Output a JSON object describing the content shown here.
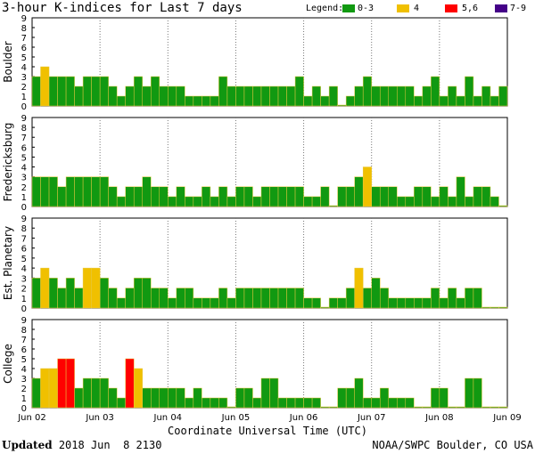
{
  "title": "3-hour K-indices for Last 7 days",
  "legend": {
    "label": "Legend:",
    "items": [
      {
        "text": "0-3",
        "color": "#119911"
      },
      {
        "text": "4",
        "color": "#f0c000"
      },
      {
        "text": "5,6",
        "color": "#ff0000"
      },
      {
        "text": "7-9",
        "color": "#440088"
      }
    ]
  },
  "x_axis_title": "Coordinate Universal Time (UTC)",
  "updated_label": "Updated",
  "updated_time": "2018 Jun  8 2130",
  "credit": "NOAA/SWPC Boulder, CO USA",
  "chart_data": [
    {
      "type": "bar",
      "ylabel": "Boulder",
      "ylim": [
        0,
        9
      ],
      "yticks": [
        "0",
        "1",
        "2",
        "3",
        "4",
        "5",
        "6",
        "7",
        "8",
        "9"
      ],
      "xticks": [
        "Jun 02",
        "Jun 03",
        "Jun 04",
        "Jun 05",
        "Jun 06",
        "Jun 07",
        "Jun 08",
        "Jun 09"
      ],
      "values": [
        3,
        4,
        3,
        3,
        3,
        2,
        3,
        3,
        3,
        2,
        1,
        2,
        3,
        2,
        3,
        2,
        2,
        2,
        1,
        1,
        1,
        1,
        3,
        2,
        2,
        2,
        2,
        2,
        2,
        2,
        2,
        3,
        1,
        2,
        1,
        2,
        0,
        1,
        2,
        3,
        2,
        2,
        2,
        2,
        2,
        1,
        2,
        3,
        1,
        2,
        1,
        3,
        1,
        2,
        1,
        2,
        3,
        2,
        1,
        0
      ]
    },
    {
      "type": "bar",
      "ylabel": "Fredericksburg",
      "ylim": [
        0,
        9
      ],
      "yticks": [
        "0",
        "1",
        "2",
        "3",
        "4",
        "5",
        "6",
        "7",
        "8",
        "9"
      ],
      "xticks": [
        "Jun 02",
        "Jun 03",
        "Jun 04",
        "Jun 05",
        "Jun 06",
        "Jun 07",
        "Jun 08",
        "Jun 09"
      ],
      "values": [
        3,
        3,
        3,
        2,
        3,
        3,
        3,
        3,
        3,
        2,
        1,
        2,
        2,
        3,
        2,
        2,
        1,
        2,
        1,
        1,
        2,
        1,
        2,
        1,
        2,
        2,
        1,
        2,
        2,
        2,
        2,
        2,
        1,
        1,
        2,
        0,
        2,
        2,
        3,
        4,
        2,
        2,
        2,
        1,
        1,
        2,
        2,
        1,
        2,
        1,
        3,
        1,
        2,
        2,
        1,
        0,
        0
      ]
    },
    {
      "type": "bar",
      "ylabel": "Est. Planetary",
      "ylim": [
        0,
        9
      ],
      "yticks": [
        "0",
        "1",
        "2",
        "3",
        "4",
        "5",
        "6",
        "7",
        "8",
        "9"
      ],
      "xticks": [
        "Jun 02",
        "Jun 03",
        "Jun 04",
        "Jun 05",
        "Jun 06",
        "Jun 07",
        "Jun 08",
        "Jun 09"
      ],
      "values": [
        3,
        4,
        3,
        2,
        3,
        2,
        4,
        4,
        3,
        2,
        1,
        2,
        3,
        3,
        2,
        2,
        1,
        2,
        2,
        1,
        1,
        1,
        2,
        1,
        2,
        2,
        2,
        2,
        2,
        2,
        2,
        2,
        1,
        1,
        0,
        1,
        1,
        2,
        4,
        2,
        3,
        2,
        1,
        1,
        1,
        1,
        1,
        2,
        1,
        2,
        1,
        2,
        2,
        0,
        0,
        0
      ]
    },
    {
      "type": "bar",
      "ylabel": "College",
      "ylim": [
        0,
        9
      ],
      "yticks": [
        "0",
        "1",
        "2",
        "3",
        "4",
        "5",
        "6",
        "7",
        "8",
        "9"
      ],
      "xticks": [
        "Jun 02",
        "Jun 03",
        "Jun 04",
        "Jun 05",
        "Jun 06",
        "Jun 07",
        "Jun 08",
        "Jun 09"
      ],
      "values": [
        3,
        4,
        4,
        5,
        5,
        2,
        3,
        3,
        3,
        2,
        1,
        5,
        4,
        2,
        2,
        2,
        2,
        2,
        1,
        2,
        1,
        1,
        1,
        0,
        2,
        2,
        1,
        3,
        3,
        1,
        1,
        1,
        1,
        1,
        0,
        0,
        2,
        2,
        3,
        1,
        1,
        2,
        1,
        1,
        1,
        0,
        0,
        2,
        2,
        0,
        0,
        3,
        3,
        0,
        0,
        0,
        0
      ]
    }
  ]
}
